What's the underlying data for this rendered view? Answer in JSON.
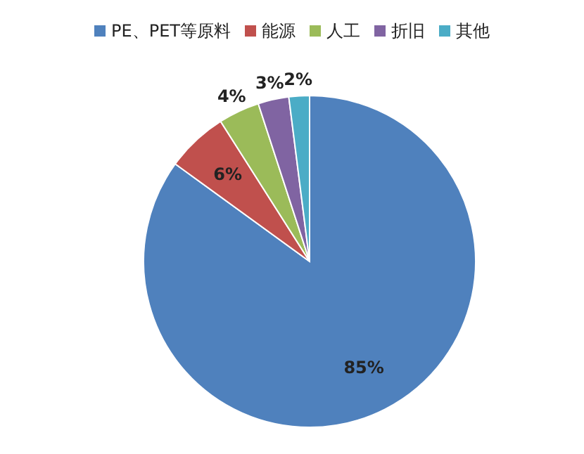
{
  "chart_data": {
    "type": "pie",
    "categories": [
      "PE、PET等原料",
      "能源",
      "人工",
      "折旧",
      "其他"
    ],
    "values": [
      85,
      6,
      4,
      3,
      2
    ],
    "colors": [
      "#4f81bd",
      "#c0504d",
      "#9bbb59",
      "#8064a2",
      "#4bacc6"
    ],
    "value_labels": [
      "85%",
      "6%",
      "4%",
      "3%",
      "2%"
    ],
    "legend": "top"
  }
}
